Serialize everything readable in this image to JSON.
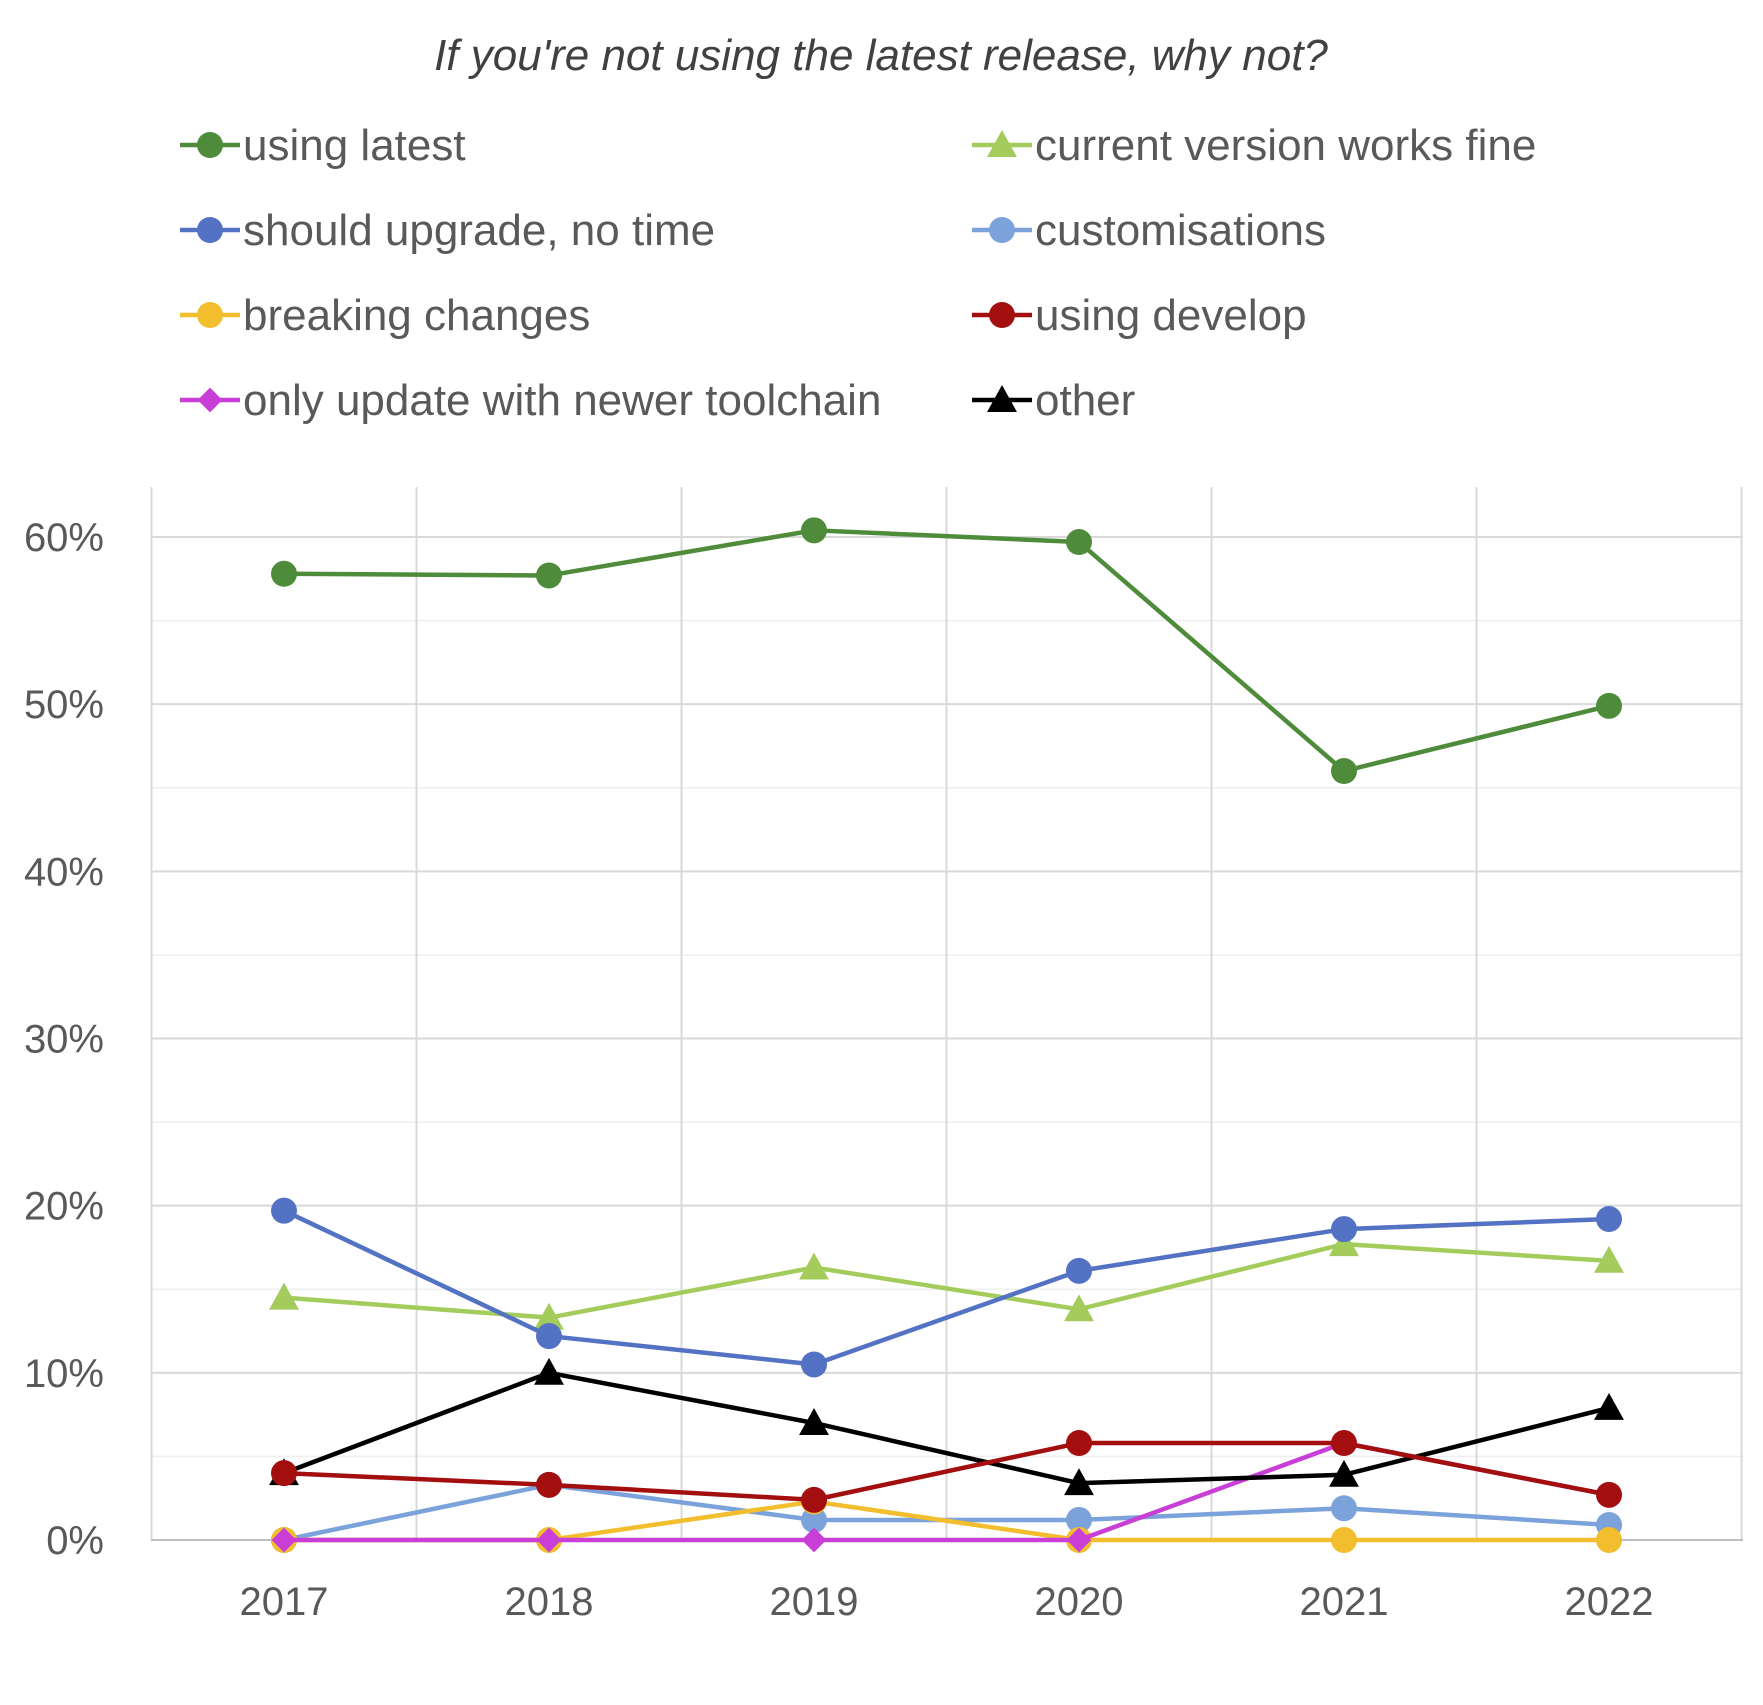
{
  "chart_data": {
    "type": "line",
    "title": "If you're not using the latest release, why not?",
    "xlabel": "",
    "ylabel": "",
    "categories": [
      "2017",
      "2018",
      "2019",
      "2020",
      "2021",
      "2022"
    ],
    "ylim": [
      0,
      0.63
    ],
    "yticks": [
      0,
      0.1,
      0.2,
      0.3,
      0.4,
      0.5,
      0.6
    ],
    "ytick_labels": [
      "0%",
      "10%",
      "20%",
      "30%",
      "40%",
      "50%",
      "60%"
    ],
    "grid": true,
    "legend_position": "top",
    "series": [
      {
        "name": "using latest",
        "color": "#4E8B3A",
        "marker": "circle",
        "values": [
          0.578,
          0.577,
          0.604,
          0.597,
          0.46,
          0.499
        ]
      },
      {
        "name": "current version works fine",
        "color": "#A4CC5C",
        "marker": "triangle",
        "values": [
          0.145,
          0.133,
          0.163,
          0.138,
          0.177,
          0.167
        ]
      },
      {
        "name": "should upgrade, no time",
        "color": "#5472C4",
        "marker": "circle",
        "values": [
          0.197,
          0.122,
          0.105,
          0.161,
          0.186,
          0.192
        ]
      },
      {
        "name": "customisations",
        "color": "#7BA2DA",
        "marker": "circle",
        "values": [
          0.0,
          0.033,
          0.012,
          0.012,
          0.019,
          0.009
        ]
      },
      {
        "name": "breaking changes",
        "color": "#F2BE2E",
        "marker": "circle",
        "values": [
          0.0,
          0.0,
          0.023,
          0.0,
          0.0,
          0.0
        ]
      },
      {
        "name": "using develop",
        "color": "#A30F0F",
        "marker": "circle",
        "values": [
          0.04,
          0.033,
          0.024,
          0.058,
          0.058,
          0.027
        ]
      },
      {
        "name": "only update with newer toolchain",
        "color": "#C93ED6",
        "marker": "diamond",
        "values": [
          0.0,
          0.0,
          0.0,
          0.0,
          0.058,
          0.027
        ]
      },
      {
        "name": "other",
        "color": "#000000",
        "marker": "triangle",
        "values": [
          0.04,
          0.1,
          0.07,
          0.034,
          0.039,
          0.079
        ]
      }
    ]
  }
}
